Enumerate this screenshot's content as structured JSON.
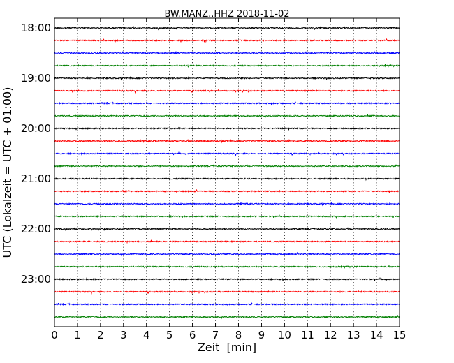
{
  "chart_data": {
    "type": "line",
    "title": "BW.MANZ..HHZ 2018-11-02",
    "xlabel": "Zeit  [min]",
    "ylabel": "UTC (Lokalzeit = UTC + 01:00)",
    "xlim": [
      0,
      15
    ],
    "x_ticks": [
      "0",
      "1",
      "2",
      "3",
      "4",
      "5",
      "6",
      "7",
      "8",
      "9",
      "10",
      "11",
      "12",
      "13",
      "14",
      "15"
    ],
    "y_tick_labels": [
      "18:00",
      "19:00",
      "20:00",
      "21:00",
      "22:00",
      "23:00"
    ],
    "grid": "vertical dotted",
    "trace_colors": [
      "#000000",
      "#ff0000",
      "#0000ff",
      "#008000"
    ],
    "trace_start_times": [
      "18:00",
      "18:15",
      "18:30",
      "18:45",
      "19:00",
      "19:15",
      "19:30",
      "19:45",
      "20:00",
      "20:15",
      "20:30",
      "20:45",
      "21:00",
      "21:15",
      "21:30",
      "21:45",
      "22:00",
      "22:15",
      "22:30",
      "22:45",
      "23:00",
      "23:15",
      "23:30",
      "23:45"
    ]
  }
}
